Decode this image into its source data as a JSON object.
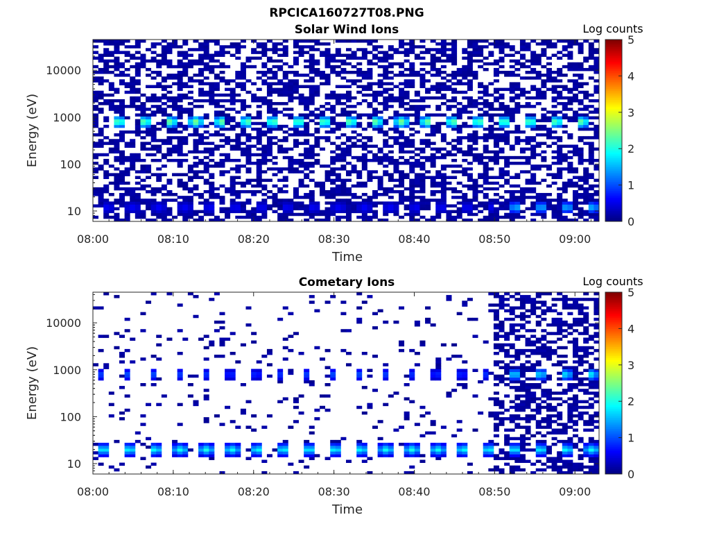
{
  "figure": {
    "title": "RPCICA160727T08.PNG"
  },
  "colorscale": {
    "stops": [
      "#00007f",
      "#0000ff",
      "#007fff",
      "#00ffff",
      "#7fff7f",
      "#ffff00",
      "#ff7f00",
      "#ff0000",
      "#7f0000"
    ]
  },
  "chart_data": [
    {
      "type": "heatmap",
      "title": "Solar Wind Ions",
      "xlabel": "Time",
      "ylabel": "Energy (eV)",
      "xlim": [
        "08:00",
        "09:03"
      ],
      "x_ticks": [
        "08:00",
        "08:10",
        "08:20",
        "08:30",
        "08:40",
        "08:50",
        "09:00"
      ],
      "y_scale": "log",
      "ylim": [
        6,
        45000
      ],
      "y_ticks": [
        10,
        100,
        1000,
        10000
      ],
      "y_tick_labels": [
        "10",
        "100",
        "1000",
        "10000"
      ],
      "colorbar": {
        "label": "Log counts",
        "range": [
          0,
          5
        ],
        "ticks": [
          "0",
          "1",
          "2",
          "3",
          "4",
          "5"
        ]
      },
      "background_level": 0.08,
      "noise_density": 0.5,
      "bands": [
        {
          "energy_eV": 800,
          "value": 2.4,
          "period_min": 3.2,
          "phase_min": 2.5,
          "duration_min": 1.4,
          "t_start": "08:02",
          "t_end": "09:03"
        },
        {
          "energy_eV": 12,
          "value": 0.6,
          "period_min": 3.2,
          "phase_min": 1.0,
          "duration_min": 1.6,
          "t_start": "08:00",
          "t_end": "08:50"
        },
        {
          "energy_eV": 12,
          "value": 1.6,
          "period_min": 3.2,
          "phase_min": 0.8,
          "duration_min": 1.2,
          "t_start": "08:50",
          "t_end": "09:03"
        }
      ],
      "note_low_energy_fill": {
        "energy_max_eV": 30,
        "density": 0.55
      }
    },
    {
      "type": "heatmap",
      "title": "Cometary Ions",
      "xlabel": "Time",
      "ylabel": "Energy (eV)",
      "xlim": [
        "08:00",
        "09:03"
      ],
      "x_ticks": [
        "08:00",
        "08:10",
        "08:20",
        "08:30",
        "08:40",
        "08:50",
        "09:00"
      ],
      "y_scale": "log",
      "ylim": [
        6,
        45000
      ],
      "y_ticks": [
        10,
        100,
        1000,
        10000
      ],
      "y_tick_labels": [
        "10",
        "100",
        "1000",
        "10000"
      ],
      "colorbar": {
        "label": "Log counts",
        "range": [
          0,
          5
        ],
        "ticks": [
          "0",
          "1",
          "2",
          "3",
          "4",
          "5"
        ]
      },
      "background_level": 0.08,
      "noise_density": 0.06,
      "dense_noise_after": "08:50",
      "dense_noise_density": 0.5,
      "bands": [
        {
          "energy_eV": 20,
          "value": 1.8,
          "period_min": 3.2,
          "phase_min": 0.5,
          "duration_min": 1.6,
          "t_start": "08:00",
          "t_end": "09:03"
        },
        {
          "energy_eV": 800,
          "value": 1.0,
          "period_min": 3.2,
          "phase_min": 0.7,
          "duration_min": 0.8,
          "t_start": "08:00",
          "t_end": "08:50"
        },
        {
          "energy_eV": 800,
          "value": 1.8,
          "period_min": 3.2,
          "phase_min": 0.7,
          "duration_min": 1.2,
          "t_start": "08:50",
          "t_end": "09:03"
        }
      ]
    }
  ]
}
